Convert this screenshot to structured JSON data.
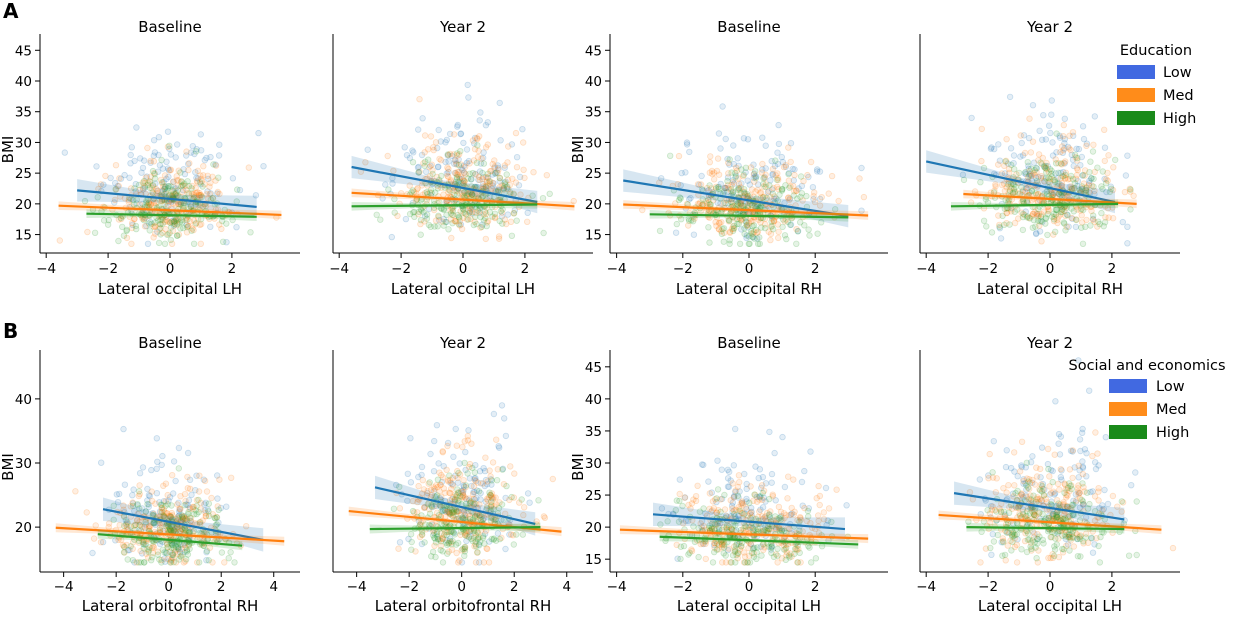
{
  "colors": {
    "low": "#1f77b4",
    "med": "#ff7f0e",
    "high": "#2ca02c",
    "legend_low": "#4169e1",
    "legend_med": "#ff8c1a",
    "legend_high": "#1a8a1a"
  },
  "rows": [
    {
      "letter": "A",
      "legend": {
        "title": "Education",
        "items": [
          "Low",
          "Med",
          "High"
        ]
      }
    },
    {
      "letter": "B",
      "legend": {
        "title": "Social and economics",
        "items": [
          "Low",
          "Med",
          "High"
        ]
      }
    }
  ],
  "chart_data": [
    {
      "type": "scatter",
      "row": 0,
      "col": 0,
      "title": "Baseline",
      "xlabel": "Lateral occipital LH",
      "ylabel": "BMI",
      "xlim": [
        -4.2,
        4.2
      ],
      "ylim": [
        12,
        47
      ],
      "xticks": [
        -4,
        -2,
        0,
        2
      ],
      "yticks": [
        15,
        20,
        25,
        30,
        35,
        40,
        45
      ],
      "series": [
        {
          "name": "Low",
          "line": {
            "x": [
              -3.0,
              2.8
            ],
            "y": [
              22.2,
              19.5
            ]
          },
          "x_range": [
            -3.0,
            2.8
          ],
          "y_center": 21,
          "spread": 5
        },
        {
          "name": "Med",
          "line": {
            "x": [
              -3.6,
              3.6
            ],
            "y": [
              19.7,
              18.2
            ]
          },
          "x_range": [
            -3.6,
            3.6
          ],
          "y_center": 19,
          "spread": 3.5
        },
        {
          "name": "High",
          "line": {
            "x": [
              -2.7,
              2.8
            ],
            "y": [
              18.4,
              17.9
            ]
          },
          "x_range": [
            -2.7,
            2.8
          ],
          "y_center": 18.2,
          "spread": 3
        }
      ]
    },
    {
      "type": "scatter",
      "row": 0,
      "col": 1,
      "title": "Year 2",
      "xlabel": "Lateral occipital LH",
      "ylabel": "",
      "xlim": [
        -4.2,
        4.2
      ],
      "ylim": [
        12,
        47
      ],
      "xticks": [
        -4,
        -2,
        0,
        2
      ],
      "yticks": [],
      "series": [
        {
          "name": "Low",
          "line": {
            "x": [
              -3.6,
              2.4
            ],
            "y": [
              26.0,
              20.3
            ]
          },
          "x_range": [
            -3.6,
            2.4
          ],
          "y_center": 23,
          "spread": 6
        },
        {
          "name": "Med",
          "line": {
            "x": [
              -3.6,
              3.6
            ],
            "y": [
              21.8,
              19.6
            ]
          },
          "x_range": [
            -3.6,
            3.6
          ],
          "y_center": 21,
          "spread": 4.5
        },
        {
          "name": "High",
          "line": {
            "x": [
              -3.6,
              2.4
            ],
            "y": [
              19.6,
              19.9
            ]
          },
          "x_range": [
            -3.6,
            2.4
          ],
          "y_center": 19.8,
          "spread": 3.5
        }
      ]
    },
    {
      "type": "scatter",
      "row": 0,
      "col": 2,
      "title": "Baseline",
      "xlabel": "Lateral occipital RH",
      "ylabel": "BMI",
      "xlim": [
        -4.2,
        4.2
      ],
      "ylim": [
        12,
        47
      ],
      "xticks": [
        -4,
        -2,
        0,
        2
      ],
      "yticks": [
        15,
        20,
        25,
        30,
        35,
        40,
        45
      ],
      "series": [
        {
          "name": "Low",
          "line": {
            "x": [
              -3.8,
              3.0
            ],
            "y": [
              23.8,
              18.0
            ]
          },
          "x_range": [
            -3.8,
            3.0
          ],
          "y_center": 21,
          "spread": 5
        },
        {
          "name": "Med",
          "line": {
            "x": [
              -3.8,
              3.6
            ],
            "y": [
              19.9,
              18.1
            ]
          },
          "x_range": [
            -3.8,
            3.6
          ],
          "y_center": 19,
          "spread": 3.5
        },
        {
          "name": "High",
          "line": {
            "x": [
              -3.0,
              3.0
            ],
            "y": [
              18.3,
              17.8
            ]
          },
          "x_range": [
            -3.0,
            3.0
          ],
          "y_center": 18.1,
          "spread": 3
        }
      ]
    },
    {
      "type": "scatter",
      "row": 0,
      "col": 3,
      "title": "Year 2",
      "xlabel": "Lateral occipital RH",
      "ylabel": "",
      "xlim": [
        -4.2,
        4.2
      ],
      "ylim": [
        12,
        47
      ],
      "xticks": [
        -4,
        -2,
        0,
        2
      ],
      "yticks": [],
      "series": [
        {
          "name": "Low",
          "line": {
            "x": [
              -4.0,
              2.1
            ],
            "y": [
              26.9,
              20.3
            ]
          },
          "x_range": [
            -4.0,
            2.1
          ],
          "y_center": 23,
          "spread": 6
        },
        {
          "name": "Med",
          "line": {
            "x": [
              -2.8,
              2.8
            ],
            "y": [
              21.6,
              20.0
            ]
          },
          "x_range": [
            -2.8,
            2.8
          ],
          "y_center": 21,
          "spread": 4.5
        },
        {
          "name": "High",
          "line": {
            "x": [
              -3.2,
              2.2
            ],
            "y": [
              19.6,
              20.0
            ]
          },
          "x_range": [
            -3.2,
            2.2
          ],
          "y_center": 19.8,
          "spread": 3.5
        }
      ]
    },
    {
      "type": "scatter",
      "row": 1,
      "col": 0,
      "title": "Baseline",
      "xlabel": "Lateral orbitofrontal RH",
      "ylabel": "BMI",
      "xlim": [
        -4.9,
        5.0
      ],
      "ylim": [
        13,
        47
      ],
      "xticks": [
        -4,
        -2,
        0,
        2,
        4
      ],
      "yticks": [
        20,
        30,
        40
      ],
      "series": [
        {
          "name": "Low",
          "line": {
            "x": [
              -2.5,
              3.6
            ],
            "y": [
              22.8,
              18.0
            ]
          },
          "x_range": [
            -2.5,
            3.6
          ],
          "y_center": 20.5,
          "spread": 5
        },
        {
          "name": "Med",
          "line": {
            "x": [
              -4.3,
              4.4
            ],
            "y": [
              19.9,
              17.8
            ]
          },
          "x_range": [
            -4.3,
            4.4
          ],
          "y_center": 18.8,
          "spread": 3.5
        },
        {
          "name": "High",
          "line": {
            "x": [
              -2.7,
              2.8
            ],
            "y": [
              18.9,
              17.1
            ]
          },
          "x_range": [
            -2.7,
            2.8
          ],
          "y_center": 18,
          "spread": 3
        }
      ]
    },
    {
      "type": "scatter",
      "row": 1,
      "col": 1,
      "title": "Year 2",
      "xlabel": "Lateral orbitofrontal RH",
      "ylabel": "",
      "xlim": [
        -4.9,
        5.0
      ],
      "ylim": [
        13,
        47
      ],
      "xticks": [
        -4,
        -2,
        0,
        2,
        4
      ],
      "yticks": [],
      "series": [
        {
          "name": "Low",
          "line": {
            "x": [
              -3.3,
              2.8
            ],
            "y": [
              26.2,
              20.5
            ]
          },
          "x_range": [
            -3.3,
            2.8
          ],
          "y_center": 23,
          "spread": 6
        },
        {
          "name": "Med",
          "line": {
            "x": [
              -4.3,
              3.8
            ],
            "y": [
              22.5,
              19.3
            ]
          },
          "x_range": [
            -4.3,
            3.8
          ],
          "y_center": 21,
          "spread": 4.5
        },
        {
          "name": "High",
          "line": {
            "x": [
              -3.5,
              3.0
            ],
            "y": [
              19.7,
              20.0
            ]
          },
          "x_range": [
            -3.5,
            3.0
          ],
          "y_center": 19.8,
          "spread": 3.5
        }
      ]
    },
    {
      "type": "scatter",
      "row": 1,
      "col": 2,
      "title": "Baseline",
      "xlabel": "Lateral occipital LH",
      "ylabel": "BMI",
      "xlim": [
        -4.2,
        4.2
      ],
      "ylim": [
        13,
        47
      ],
      "xticks": [
        -4,
        -2,
        0,
        2
      ],
      "yticks": [
        15,
        20,
        25,
        30,
        35,
        40,
        45
      ],
      "series": [
        {
          "name": "Low",
          "line": {
            "x": [
              -2.9,
              2.9
            ],
            "y": [
              22.0,
              19.7
            ]
          },
          "x_range": [
            -2.9,
            2.9
          ],
          "y_center": 20.8,
          "spread": 5
        },
        {
          "name": "Med",
          "line": {
            "x": [
              -3.9,
              3.6
            ],
            "y": [
              19.6,
              18.2
            ]
          },
          "x_range": [
            -3.9,
            3.6
          ],
          "y_center": 18.9,
          "spread": 3.5
        },
        {
          "name": "High",
          "line": {
            "x": [
              -2.7,
              3.3
            ],
            "y": [
              18.5,
              17.3
            ]
          },
          "x_range": [
            -2.7,
            3.3
          ],
          "y_center": 17.9,
          "spread": 3
        }
      ]
    },
    {
      "type": "scatter",
      "row": 1,
      "col": 3,
      "title": "Year 2",
      "xlabel": "Lateral occipital LH",
      "ylabel": "",
      "xlim": [
        -4.2,
        4.2
      ],
      "ylim": [
        13,
        47
      ],
      "xticks": [
        -4,
        -2,
        0,
        2
      ],
      "yticks": [],
      "series": [
        {
          "name": "Low",
          "line": {
            "x": [
              -3.1,
              2.4
            ],
            "y": [
              25.3,
              21.2
            ]
          },
          "x_range": [
            -3.1,
            2.4
          ],
          "y_center": 23,
          "spread": 6
        },
        {
          "name": "Med",
          "line": {
            "x": [
              -3.6,
              3.6
            ],
            "y": [
              21.9,
              19.6
            ]
          },
          "x_range": [
            -3.6,
            3.6
          ],
          "y_center": 20.8,
          "spread": 4.5
        },
        {
          "name": "High",
          "line": {
            "x": [
              -2.7,
              2.4
            ],
            "y": [
              20.0,
              19.7
            ]
          },
          "x_range": [
            -2.7,
            2.4
          ],
          "y_center": 19.8,
          "spread": 3.5
        }
      ]
    }
  ]
}
